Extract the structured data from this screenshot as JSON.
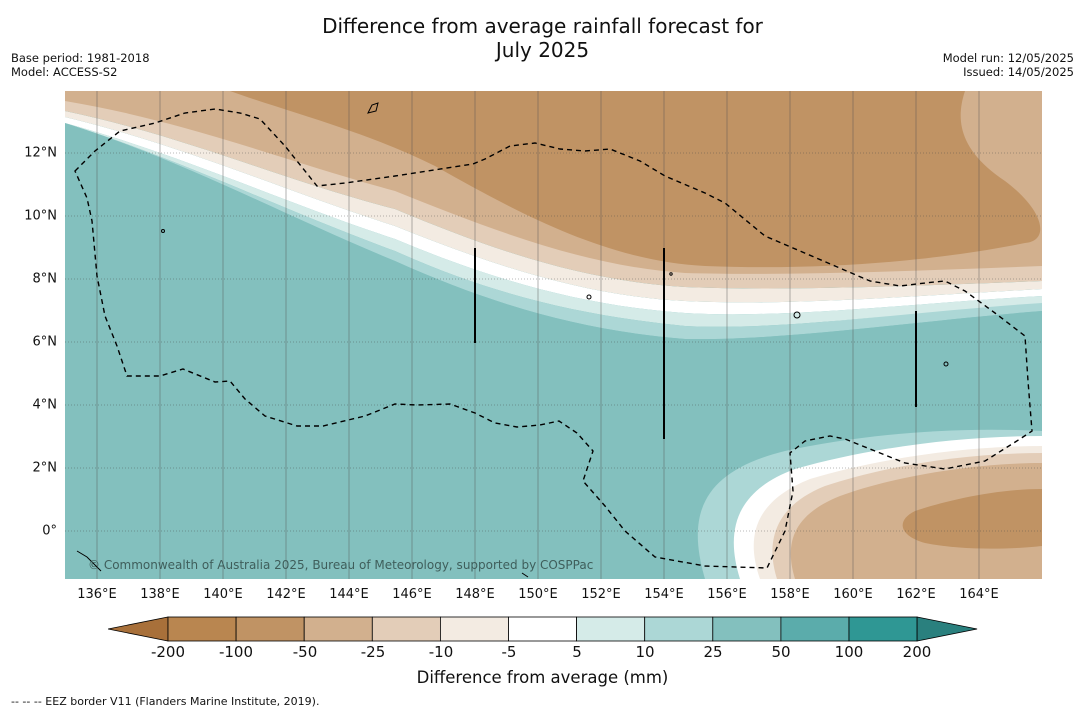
{
  "title_line1": "Difference from average rainfall forecast for",
  "title_line2": "July 2025",
  "meta_left": [
    "Base period: 1981-2018",
    "Model: ACCESS-S2"
  ],
  "meta_right": [
    "Model run: 12/05/2025",
    "Issued: 14/05/2025"
  ],
  "map": {
    "x_ticks": [
      "136°E",
      "138°E",
      "140°E",
      "142°E",
      "144°E",
      "146°E",
      "148°E",
      "150°E",
      "152°E",
      "154°E",
      "156°E",
      "158°E",
      "160°E",
      "162°E",
      "164°E"
    ],
    "y_ticks": [
      "12°N",
      "10°N",
      "8°N",
      "6°N",
      "4°N",
      "2°N",
      "0°"
    ],
    "copyright": "© Commonwealth of Australia 2025, Bureau of Meteorology, supported by COSPPac"
  },
  "colorbar": {
    "labels": [
      "-200",
      "-100",
      "-50",
      "-25",
      "-10",
      "-5",
      "5",
      "10",
      "25",
      "50",
      "100",
      "200"
    ],
    "colors": [
      "#a8703a",
      "#b98650",
      "#c09364",
      "#d2b08e",
      "#e3cdb8",
      "#f3ebe2",
      "#ffffff",
      "#d5ebe8",
      "#acd7d6",
      "#83c0be",
      "#5bacab",
      "#2f9794",
      "#2a807e"
    ],
    "title": "Difference from average (mm)"
  },
  "footnote": "--  --  -- EEZ border V11 (Flanders Marine Institute, 2019)."
}
